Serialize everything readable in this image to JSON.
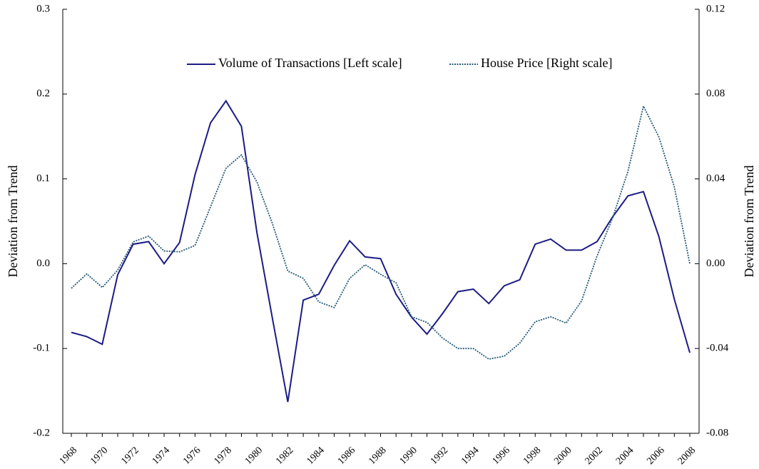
{
  "chart_data": {
    "type": "line",
    "categories": [
      "1968",
      null,
      "1970",
      null,
      "1972",
      null,
      "1974",
      null,
      "1976",
      null,
      "1978",
      null,
      "1980",
      null,
      "1982",
      null,
      "1984",
      null,
      "1986",
      null,
      "1988",
      null,
      "1990",
      null,
      "1992",
      null,
      "1994",
      null,
      "1996",
      null,
      "1998",
      null,
      "2000",
      null,
      "2002",
      null,
      "2004",
      null,
      "2006",
      null,
      "2008"
    ],
    "ylabel": "Deviation from Trend",
    "y2label": "Deviation from Trend",
    "ylim": [
      -0.2,
      0.3
    ],
    "yticks": [
      -0.2,
      -0.1,
      {
        "value": 0,
        "label": "0.0"
      },
      0.1,
      0.2,
      0.3
    ],
    "y2lim": [
      -0.08,
      0.12
    ],
    "y2ticks": [
      -0.08,
      -0.04,
      {
        "value": 0,
        "label": "0.00"
      },
      0.04,
      0.08,
      0.12
    ],
    "legend": "top",
    "series": [
      {
        "name": "Volume of Transactions [Left scale]",
        "color": "#1c1c84",
        "dash": false,
        "values": [
          -0.081,
          -0.086,
          -0.095,
          -0.013,
          0.023,
          0.026,
          0.0,
          0.025,
          0.105,
          0.166,
          0.192,
          0.162,
          0.037,
          -0.064,
          -0.163,
          -0.043,
          -0.036,
          -0.002,
          0.027,
          0.008,
          0.006,
          -0.036,
          -0.063,
          -0.083,
          -0.059,
          -0.033,
          -0.03,
          -0.047,
          -0.026,
          -0.019,
          0.023,
          0.029,
          0.016,
          0.016,
          0.026,
          0.055,
          0.08,
          0.085,
          0.032,
          -0.042,
          -0.105
        ]
      },
      {
        "name": "House Price [Right scale]",
        "color": "#245a78",
        "dash": true,
        "axis": "y2",
        "values": [
          -0.0116,
          -0.0048,
          -0.0112,
          -0.003,
          0.0103,
          0.013,
          0.006,
          0.0056,
          0.0086,
          0.0268,
          0.045,
          0.0513,
          0.0386,
          0.019,
          -0.0035,
          -0.0069,
          -0.018,
          -0.0207,
          -0.0069,
          -0.0005,
          -0.005,
          -0.009,
          -0.025,
          -0.0277,
          -0.035,
          -0.04,
          -0.04,
          -0.045,
          -0.0436,
          -0.0375,
          -0.0274,
          -0.025,
          -0.028,
          -0.0176,
          0.0036,
          0.0214,
          0.0436,
          0.0743,
          0.0598,
          0.0362,
          0.0
        ]
      }
    ]
  }
}
